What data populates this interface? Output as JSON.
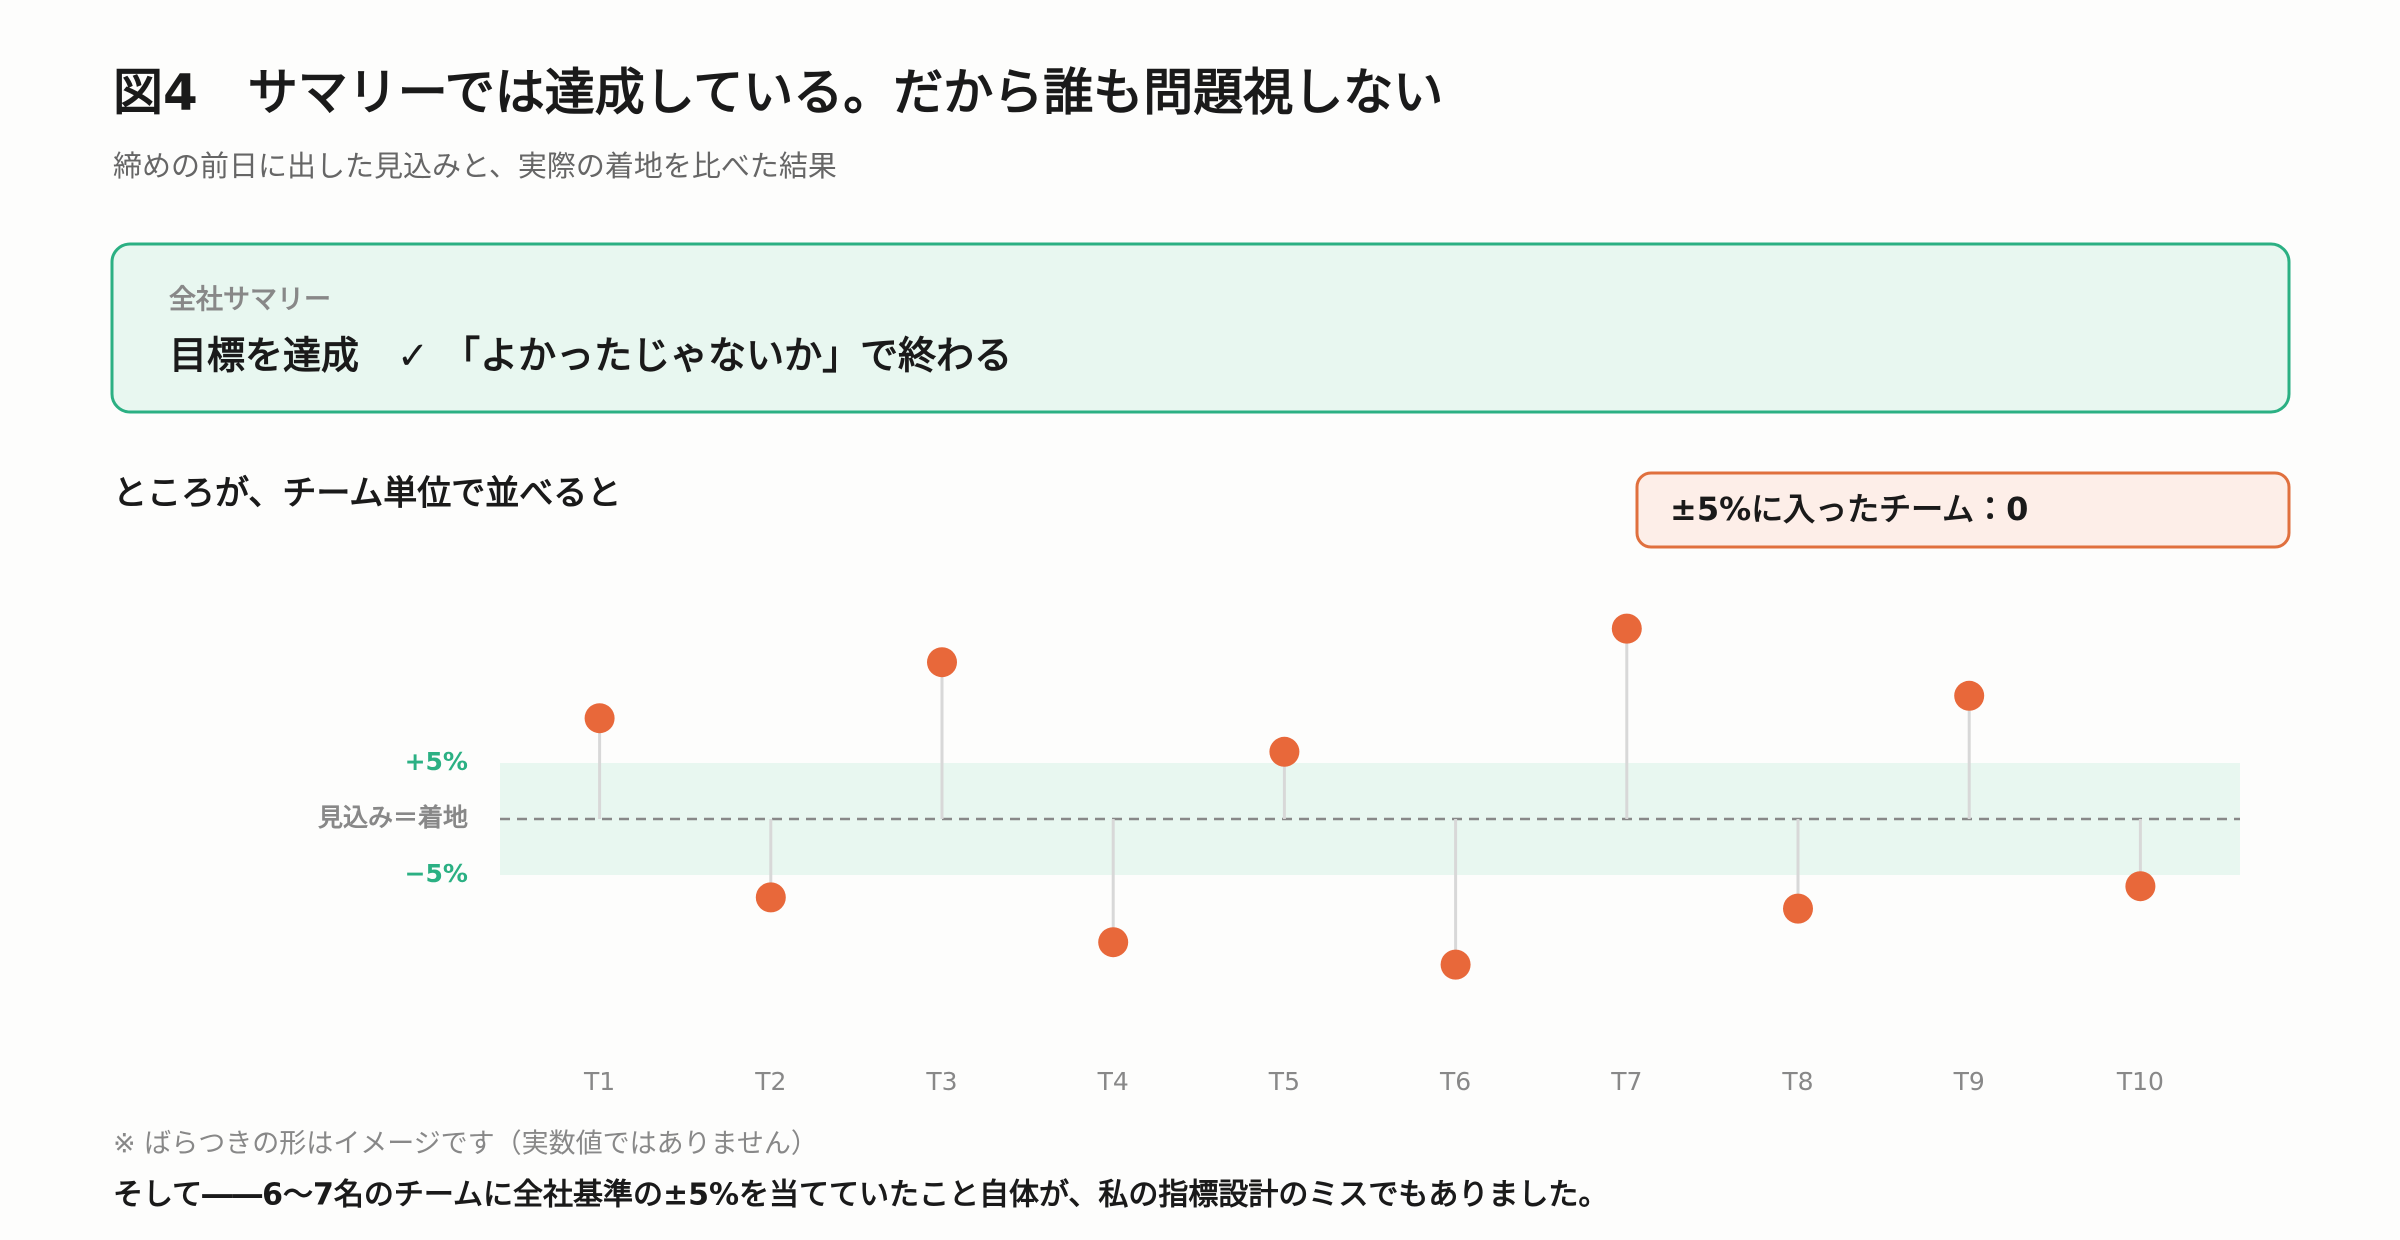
{
  "header": {
    "title": "図4　サマリーでは達成している。だから誰も問題視しない",
    "subtitle": "締めの前日に出した見込みと、実際の着地を比べた結果"
  },
  "summary": {
    "label": "全社サマリー",
    "text": "目標を達成　✓ 「よかったじゃないか」で終わる"
  },
  "chart_data": {
    "type": "lollipop",
    "title": "ところが、チーム単位で並べると",
    "annotation": "±5%に入ったチーム：0",
    "categories": [
      "T1",
      "T2",
      "T3",
      "T4",
      "T5",
      "T6",
      "T7",
      "T8",
      "T9",
      "T10"
    ],
    "values": [
      9,
      -7,
      14,
      -11,
      6,
      -13,
      17,
      -8,
      11,
      -6
    ],
    "color": "#e8683a",
    "ylim": [
      -20,
      20
    ],
    "yticks": [
      {
        "value": 5,
        "label": "+5%"
      },
      {
        "value": 0,
        "label": "見込み＝着地"
      },
      {
        "value": -5,
        "label": "−5%"
      }
    ]
  },
  "footer": {
    "note": "※ ばらつきの形はイメージです（実数値ではありません）",
    "conclusion": "そして――6〜7名のチームに全社基準の±5%を当てていたこと自体が、私の指標設計のミスでもありました。"
  }
}
